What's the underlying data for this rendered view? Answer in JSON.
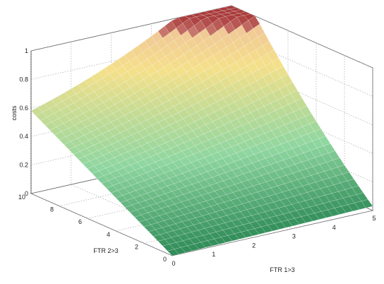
{
  "chart_data": {
    "type": "surface",
    "title": "",
    "xlabel": "FTR 1>3",
    "ylabel": "FTR 2>3",
    "zlabel": "costs",
    "x_ticks": [
      "0",
      "1",
      "2",
      "3",
      "4",
      "5"
    ],
    "y_ticks": [
      "0",
      "2",
      "4",
      "6",
      "8",
      "10"
    ],
    "z_ticks": [
      "0",
      "0.2",
      "0.4",
      "0.6",
      "0.8",
      "1"
    ],
    "xlim": [
      0,
      5
    ],
    "ylim": [
      0,
      10
    ],
    "zlim": [
      0,
      1
    ],
    "grid": true,
    "surface": {
      "x": [
        0,
        5
      ],
      "y": [
        0,
        10
      ],
      "corner_values": {
        "x0_y0": 0.0,
        "x5_y0": 0.03,
        "x0_y10": 0.58,
        "x5_y10": 1.0
      }
    },
    "colors": {
      "low": "#2e8b57",
      "mid": "#8fd6a0",
      "high": "#f5e08a",
      "peak": "#a83a3a"
    }
  }
}
